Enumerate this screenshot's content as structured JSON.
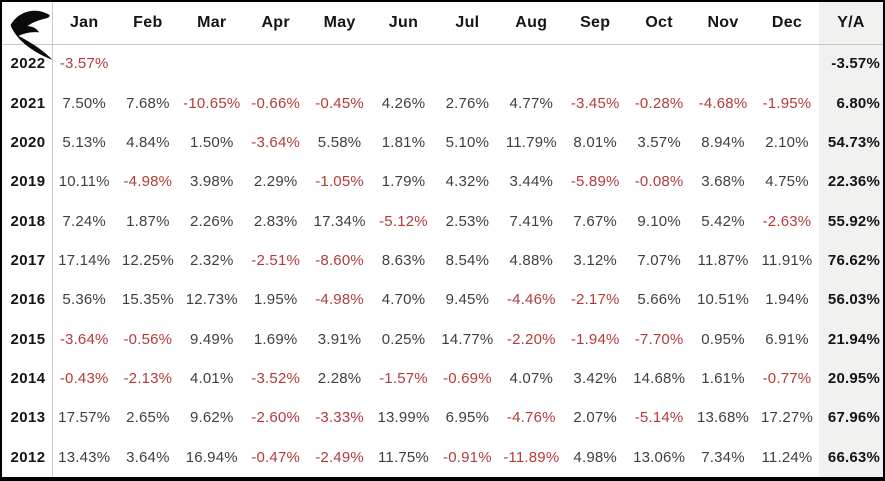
{
  "brand": {
    "logo_icon": "r-swoosh-logo"
  },
  "colors": {
    "negative_text": "#b43b3b",
    "positive_text": "#3f3f3f",
    "emphasis_text": "#151515",
    "annual_column_bg": "#f1f1f0",
    "grid_line": "#c9c9c9",
    "frame_border": "#000000"
  },
  "chart_data": {
    "type": "table",
    "month_headers": [
      "Jan",
      "Feb",
      "Mar",
      "Apr",
      "May",
      "Jun",
      "Jul",
      "Aug",
      "Sep",
      "Oct",
      "Nov",
      "Dec"
    ],
    "annual_header": "Y/A",
    "rows": [
      {
        "year": "2022",
        "monthly": [
          "-3.57%",
          "",
          "",
          "",
          "",
          "",
          "",
          "",
          "",
          "",
          "",
          ""
        ],
        "annual": "-3.57%"
      },
      {
        "year": "2021",
        "monthly": [
          "7.50%",
          "7.68%",
          "-10.65%",
          "-0.66%",
          "-0.45%",
          "4.26%",
          "2.76%",
          "4.77%",
          "-3.45%",
          "-0.28%",
          "-4.68%",
          "-1.95%"
        ],
        "annual": "6.80%"
      },
      {
        "year": "2020",
        "monthly": [
          "5.13%",
          "4.84%",
          "1.50%",
          "-3.64%",
          "5.58%",
          "1.81%",
          "5.10%",
          "11.79%",
          "8.01%",
          "3.57%",
          "8.94%",
          "2.10%"
        ],
        "annual": "54.73%"
      },
      {
        "year": "2019",
        "monthly": [
          "10.11%",
          "-4.98%",
          "3.98%",
          "2.29%",
          "-1.05%",
          "1.79%",
          "4.32%",
          "3.44%",
          "-5.89%",
          "-0.08%",
          "3.68%",
          "4.75%"
        ],
        "annual": "22.36%"
      },
      {
        "year": "2018",
        "monthly": [
          "7.24%",
          "1.87%",
          "2.26%",
          "2.83%",
          "17.34%",
          "-5.12%",
          "2.53%",
          "7.41%",
          "7.67%",
          "9.10%",
          "5.42%",
          "-2.63%"
        ],
        "annual": "55.92%"
      },
      {
        "year": "2017",
        "monthly": [
          "17.14%",
          "12.25%",
          "2.32%",
          "-2.51%",
          "-8.60%",
          "8.63%",
          "8.54%",
          "4.88%",
          "3.12%",
          "7.07%",
          "11.87%",
          "11.91%"
        ],
        "annual": "76.62%"
      },
      {
        "year": "2016",
        "monthly": [
          "5.36%",
          "15.35%",
          "12.73%",
          "1.95%",
          "-4.98%",
          "4.70%",
          "9.45%",
          "-4.46%",
          "-2.17%",
          "5.66%",
          "10.51%",
          "1.94%"
        ],
        "annual": "56.03%"
      },
      {
        "year": "2015",
        "monthly": [
          "-3.64%",
          "-0.56%",
          "9.49%",
          "1.69%",
          "3.91%",
          "0.25%",
          "14.77%",
          "-2.20%",
          "-1.94%",
          "-7.70%",
          "0.95%",
          "6.91%"
        ],
        "annual": "21.94%"
      },
      {
        "year": "2014",
        "monthly": [
          "-0.43%",
          "-2.13%",
          "4.01%",
          "-3.52%",
          "2.28%",
          "-1.57%",
          "-0.69%",
          "4.07%",
          "3.42%",
          "14.68%",
          "1.61%",
          "-0.77%"
        ],
        "annual": "20.95%"
      },
      {
        "year": "2013",
        "monthly": [
          "17.57%",
          "2.65%",
          "9.62%",
          "-2.60%",
          "-3.33%",
          "13.99%",
          "6.95%",
          "-4.76%",
          "2.07%",
          "-5.14%",
          "13.68%",
          "17.27%"
        ],
        "annual": "67.96%"
      },
      {
        "year": "2012",
        "monthly": [
          "13.43%",
          "3.64%",
          "16.94%",
          "-0.47%",
          "-2.49%",
          "11.75%",
          "-0.91%",
          "-11.89%",
          "4.98%",
          "13.06%",
          "7.34%",
          "11.24%"
        ],
        "annual": "66.63%"
      }
    ]
  }
}
